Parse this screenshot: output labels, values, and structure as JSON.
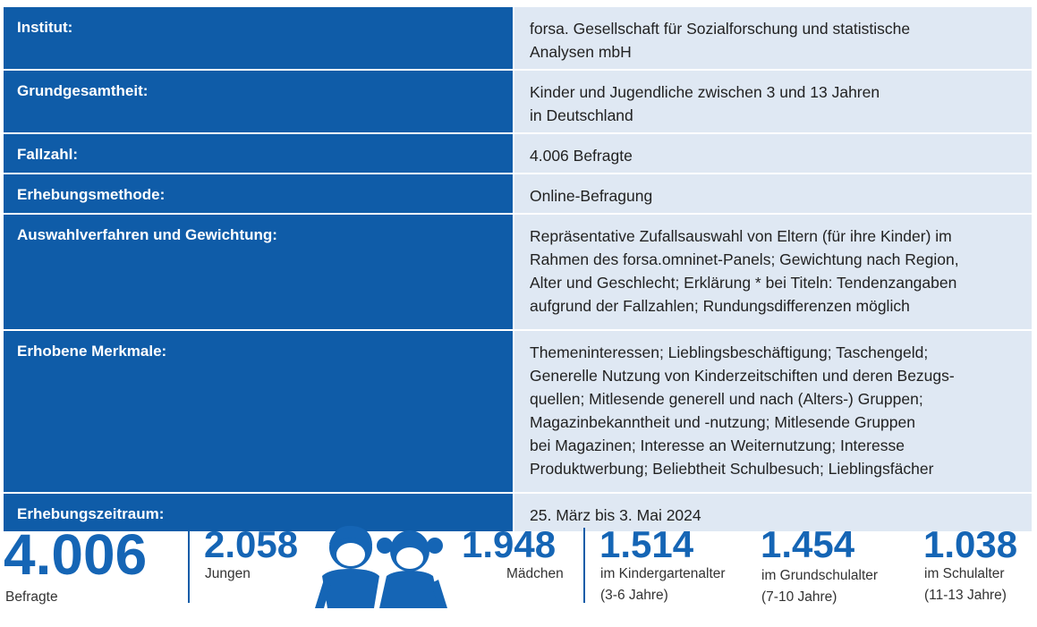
{
  "table": {
    "rows": [
      {
        "label": "Institut:",
        "value": "forsa. Gesellschaft für Sozialforschung und statistische\nAnalysen mbH"
      },
      {
        "label": "Grundgesamtheit:",
        "value": "Kinder und Jugendliche zwischen 3 und 13 Jahren\nin Deutschland"
      },
      {
        "label": "Fallzahl:",
        "value": "4.006 Befragte"
      },
      {
        "label": "Erhebungsmethode:",
        "value": "Online-Befragung"
      },
      {
        "label": "Auswahlverfahren und Gewichtung:",
        "value": "Repräsentative Zufallsauswahl von Eltern (für ihre Kinder) im\nRahmen des forsa.omninet-Panels; Gewichtung nach Region,\nAlter und Geschlecht; Erklärung * bei Titeln: Tendenzangaben\naufgrund der Fallzahlen; Rundungsdifferenzen möglich"
      },
      {
        "label": "Erhobene Merkmale:",
        "value": "Themeninteressen; Lieblingsbeschäftigung; Taschengeld;\nGenerelle Nutzung von Kinderzeitschiften und deren Bezugs-\nquellen; Mitlesende generell und nach (Alters-) Gruppen;\nMagazinbekanntheit und -nutzung; Mitlesende Gruppen\nbei Magazinen; Interesse an Weiternutzung; Interesse\nProduktwerbung; Beliebtheit Schulbesuch; Lieblingsfächer"
      },
      {
        "label": "Erhebungszeitraum:",
        "value": "25. März bis 3. Mai 2024"
      }
    ]
  },
  "stats": {
    "total": {
      "value": "4.006",
      "label": "Befragte"
    },
    "boys": {
      "value": "2.058",
      "label": "Jungen"
    },
    "girls": {
      "value": "1.948",
      "label": "Mädchen"
    },
    "kindergarten": {
      "value": "1.514",
      "label": "im Kindergartenalter\n(3-6 Jahre)"
    },
    "primary": {
      "value": "1.454",
      "label": "im Grundschulalter\n(7-10 Jahre)"
    },
    "school": {
      "value": "1.038",
      "label": "im Schulalter\n(11-13 Jahre)"
    }
  },
  "icons": {
    "children": "boy-and-girl-icon"
  },
  "colors": {
    "label_bg": "#0f5ca8",
    "value_bg": "#dfe8f3",
    "accent": "#1565b5"
  }
}
